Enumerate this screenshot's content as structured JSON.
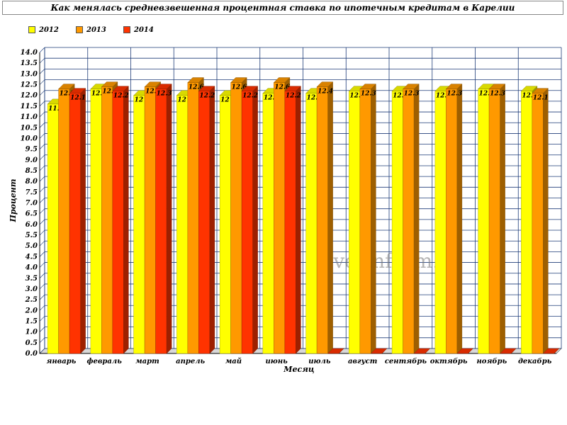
{
  "chart_data": {
    "type": "bar",
    "title": "Как менялась средневзвешенная процентная ставка по ипотечным кредитам в Карелии",
    "xlabel": "Месяц",
    "ylabel": "Процент",
    "ylim": [
      0,
      14
    ],
    "ytick_step": 0.5,
    "grid": true,
    "legend_position": "top-left",
    "watermark": "severinform.ru",
    "categories": [
      "январь",
      "февраль",
      "март",
      "апрель",
      "май",
      "июнь",
      "июль",
      "август",
      "сентябрь",
      "октябрь",
      "ноябрь",
      "декабрь"
    ],
    "series": [
      {
        "name": "2012",
        "color": "#ffff00",
        "values": [
          11.6,
          12.3,
          12,
          12,
          12,
          12.1,
          12.1,
          12.2,
          12.2,
          12.2,
          12.3,
          12.2
        ]
      },
      {
        "name": "2013",
        "color": "#ff9900",
        "values": [
          12.3,
          12.4,
          12.4,
          12.6,
          12.6,
          12.6,
          12.4,
          12.3,
          12.3,
          12.3,
          12.3,
          12.1
        ]
      },
      {
        "name": "2014",
        "color": "#ff3300",
        "values": [
          12.1,
          12.2,
          12.3,
          12.2,
          12.2,
          12.2,
          0,
          0,
          0,
          0,
          0,
          0
        ]
      }
    ]
  }
}
